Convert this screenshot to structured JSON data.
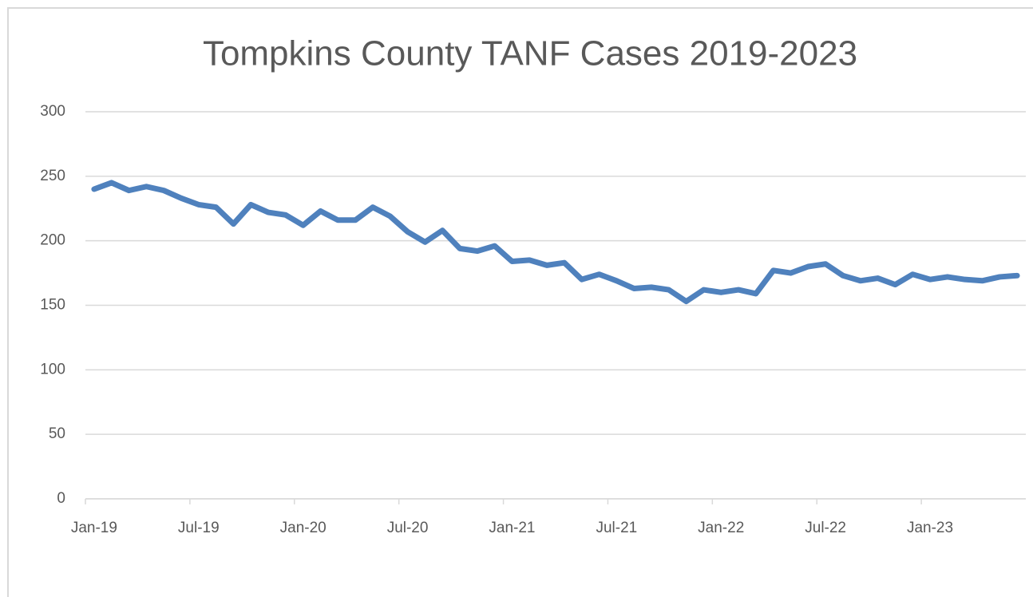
{
  "chart_data": {
    "type": "line",
    "title": "Tompkins County TANF Cases 2019-2023",
    "categories": [
      "Jan-19",
      null,
      null,
      null,
      null,
      null,
      "Jul-19",
      null,
      null,
      null,
      null,
      null,
      "Jan-20",
      null,
      null,
      null,
      null,
      null,
      "Jul-20",
      null,
      null,
      null,
      null,
      null,
      "Jan-21",
      null,
      null,
      null,
      null,
      null,
      "Jul-21",
      null,
      null,
      null,
      null,
      null,
      "Jan-22",
      null,
      null,
      null,
      null,
      null,
      "Jul-22",
      null,
      null,
      null,
      null,
      null,
      "Jan-23",
      null,
      null,
      null,
      null,
      null
    ],
    "series": [
      {
        "color": "#4f81bd",
        "values": [
          240,
          245,
          239,
          242,
          239,
          233,
          228,
          226,
          213,
          228,
          222,
          220,
          212,
          223,
          216,
          216,
          226,
          219,
          207,
          199,
          208,
          194,
          192,
          196,
          184,
          185,
          181,
          183,
          170,
          174,
          169,
          163,
          164,
          162,
          153,
          162,
          160,
          162,
          159,
          177,
          175,
          180,
          182,
          173,
          169,
          171,
          166,
          174,
          170,
          172,
          170,
          169,
          172,
          173
        ]
      }
    ],
    "ylim": [
      0,
      300
    ],
    "yticks": [
      0,
      50,
      100,
      150,
      200,
      250,
      300
    ],
    "grid": true
  }
}
